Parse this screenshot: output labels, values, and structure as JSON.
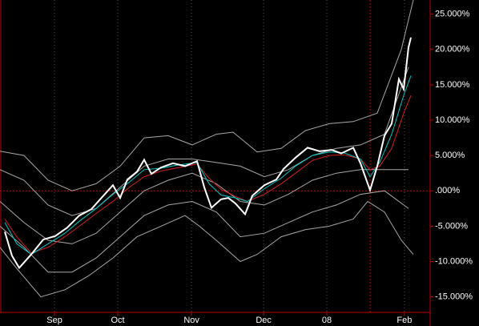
{
  "chart_data": {
    "type": "line",
    "xlim": [
      0,
      179
    ],
    "ylim": [
      -17.2,
      27.0
    ],
    "xticks": [
      {
        "value": 22.7,
        "label": "Sep"
      },
      {
        "value": 49,
        "label": "Oct"
      },
      {
        "value": 79.7,
        "label": "Nov"
      },
      {
        "value": 109.7,
        "label": "Dec"
      },
      {
        "value": 136,
        "label": "08"
      },
      {
        "value": 168.3,
        "label": "Feb"
      }
    ],
    "yticks": [
      {
        "value": 25,
        "label": "25.000%"
      },
      {
        "value": 20,
        "label": "20.000%"
      },
      {
        "value": 15,
        "label": "15.000%"
      },
      {
        "value": 10,
        "label": "10.000%"
      },
      {
        "value": 5,
        "label": "5.000%"
      },
      {
        "value": 0,
        "label": ".000%"
      },
      {
        "value": -5,
        "label": "-5.000%"
      },
      {
        "value": -10,
        "label": "-10.000%"
      },
      {
        "value": -15,
        "label": "-15.000%"
      }
    ],
    "grid": "x",
    "hlines": [
      0
    ],
    "vlines": [
      154
    ],
    "series": [
      {
        "color": "#a8a8a8",
        "x": [
          0,
          10,
          20,
          30,
          40,
          50,
          60,
          70,
          80,
          90,
          97,
          107,
          117,
          127,
          137,
          147,
          157,
          167,
          172
        ],
        "values": [
          5.6,
          5.0,
          1.5,
          0.0,
          1.0,
          3.5,
          7.5,
          7.8,
          6.5,
          8.0,
          8.3,
          5.5,
          6.0,
          8.5,
          9.5,
          9.8,
          11.0,
          20.0,
          27.0
        ]
      },
      {
        "color": "#a8a8a8",
        "x": [
          0,
          7,
          17,
          27,
          37,
          47,
          57,
          67,
          77,
          83,
          90,
          100,
          107,
          117,
          127,
          137,
          147,
          153,
          160,
          167,
          172
        ],
        "values": [
          -8.0,
          -11.0,
          -15.0,
          -14.0,
          -12.0,
          -9.5,
          -6.5,
          -5.0,
          -3.5,
          -5.0,
          -7.0,
          -10.0,
          -9.0,
          -6.5,
          -5.5,
          -5.0,
          -4.0,
          -1.5,
          -3.0,
          -7.0,
          -9.0
        ]
      },
      {
        "color": "#a8a8a8",
        "x": [
          0,
          10,
          20,
          30,
          40,
          50,
          60,
          70,
          80,
          90,
          100,
          110,
          120,
          130,
          140,
          150,
          160,
          170
        ],
        "values": [
          3.0,
          1.5,
          -2.0,
          -3.5,
          -2.5,
          0.5,
          3.5,
          4.5,
          4.5,
          4.0,
          3.5,
          2.0,
          3.0,
          5.0,
          6.0,
          6.5,
          8.0,
          17.5
        ]
      },
      {
        "color": "#a8a8a8",
        "x": [
          0,
          10,
          20,
          30,
          40,
          50,
          60,
          70,
          80,
          90,
          100,
          110,
          120,
          130,
          140,
          150,
          160,
          170
        ],
        "values": [
          -5.0,
          -8.0,
          -11.5,
          -11.5,
          -9.5,
          -6.5,
          -3.5,
          -2.0,
          -1.5,
          -3.0,
          -6.5,
          -6.0,
          -4.5,
          -3.0,
          -2.0,
          -0.5,
          0.0,
          -2.5
        ]
      },
      {
        "color": "#a8a8a8",
        "x": [
          0,
          10,
          20,
          30,
          40,
          50,
          60,
          70,
          80,
          90,
          100,
          110,
          120,
          130,
          140,
          150,
          160,
          170
        ],
        "values": [
          -1.5,
          -4.5,
          -7.0,
          -7.5,
          -6.0,
          -3.0,
          0.0,
          1.5,
          2.5,
          1.0,
          -1.5,
          -2.0,
          -0.5,
          1.5,
          2.5,
          3.0,
          3.0,
          3.0
        ]
      },
      {
        "color": "#d02020",
        "x": [
          2,
          7,
          13,
          20,
          27,
          33,
          40,
          47,
          53,
          60,
          67,
          73,
          82,
          87,
          92,
          98,
          103,
          110,
          117,
          123,
          130,
          137,
          143,
          150,
          154,
          158,
          163,
          168,
          171
        ],
        "values": [
          -4.0,
          -6.5,
          -8.8,
          -8.0,
          -6.5,
          -5.0,
          -3.2,
          -1.5,
          0.3,
          2.0,
          2.8,
          3.2,
          3.8,
          1.8,
          0.2,
          -0.8,
          -1.5,
          -0.5,
          1.0,
          2.5,
          4.3,
          5.0,
          5.1,
          4.5,
          3.0,
          3.5,
          6.0,
          11.0,
          13.5
        ]
      },
      {
        "color": "#00c8c8",
        "x": [
          2,
          7,
          13,
          20,
          27,
          33,
          40,
          47,
          53,
          60,
          67,
          73,
          82,
          87,
          92,
          98,
          103,
          110,
          117,
          123,
          130,
          137,
          143,
          150,
          154,
          158,
          163,
          168,
          171
        ],
        "values": [
          -4.5,
          -7.5,
          -9.0,
          -7.5,
          -6.0,
          -4.3,
          -2.5,
          -0.5,
          1.0,
          3.0,
          3.2,
          3.6,
          4.0,
          1.0,
          -0.6,
          -1.0,
          -1.5,
          0.3,
          1.8,
          3.5,
          5.0,
          5.5,
          5.4,
          4.5,
          2.0,
          4.0,
          8.0,
          13.5,
          16.3
        ]
      },
      {
        "color": "#ffffff",
        "x": [
          2,
          5,
          8,
          13,
          18,
          23,
          28,
          33,
          38,
          43,
          47,
          50,
          53,
          57,
          60,
          63,
          67,
          72,
          77,
          82,
          85,
          88,
          92,
          95,
          98,
          102,
          105,
          110,
          115,
          118,
          123,
          128,
          133,
          138,
          142,
          147,
          150,
          154,
          157,
          160,
          163,
          166,
          168,
          170,
          171
        ],
        "values": [
          -5.8,
          -9.2,
          -10.9,
          -9.0,
          -6.9,
          -6.4,
          -5.2,
          -3.5,
          -2.6,
          -0.7,
          0.8,
          -1.0,
          1.6,
          2.7,
          4.4,
          2.4,
          3.3,
          3.9,
          3.5,
          4.2,
          0.5,
          -2.4,
          -1.2,
          -1.0,
          -1.8,
          -3.3,
          -0.7,
          0.8,
          1.6,
          3.1,
          4.7,
          6.1,
          5.6,
          5.8,
          5.3,
          6.1,
          3.9,
          0.1,
          3.5,
          7.8,
          9.5,
          15.8,
          14.4,
          20.3,
          21.7
        ]
      }
    ]
  }
}
